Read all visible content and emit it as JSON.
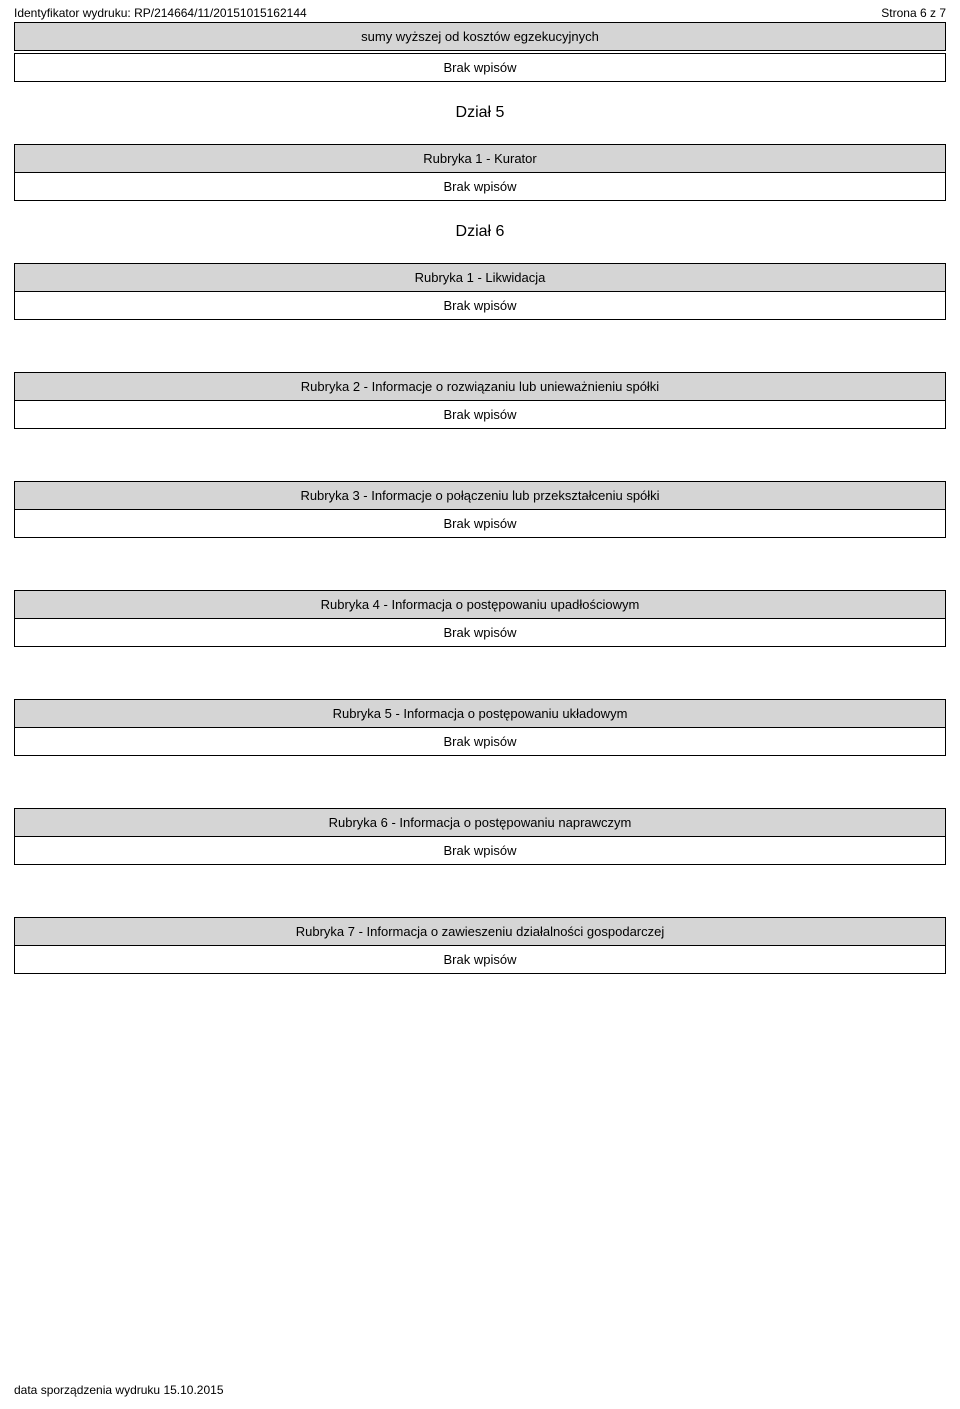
{
  "header": {
    "identifier_label": "Identyfikator wydruku:",
    "identifier_value": "RP/214664/11/20151015162144",
    "page_label": "Strona 6 z 7"
  },
  "top_section": {
    "title": "sumy wyższej od kosztów egzekucyjnych",
    "body": "Brak wpisów"
  },
  "dzial5": {
    "heading": "Dział 5",
    "rubryka1": {
      "title": "Rubryka 1 - Kurator",
      "body": "Brak wpisów"
    }
  },
  "dzial6": {
    "heading": "Dział 6",
    "rubryka1": {
      "title": "Rubryka 1 - Likwidacja",
      "body": "Brak wpisów"
    },
    "rubryka2": {
      "title": "Rubryka 2 - Informacje o rozwiązaniu lub unieważnieniu spółki",
      "body": "Brak wpisów"
    },
    "rubryka3": {
      "title": "Rubryka 3 - Informacje o połączeniu lub przekształceniu spółki",
      "body": "Brak wpisów"
    },
    "rubryka4": {
      "title": "Rubryka 4 - Informacja o postępowaniu upadłościowym",
      "body": "Brak wpisów"
    },
    "rubryka5": {
      "title": "Rubryka 5 - Informacja o postępowaniu układowym",
      "body": "Brak wpisów"
    },
    "rubryka6": {
      "title": "Rubryka 6 - Informacja o postępowaniu naprawczym",
      "body": "Brak wpisów"
    },
    "rubryka7": {
      "title": "Rubryka 7 - Informacja o zawieszeniu działalności gospodarczej",
      "body": "Brak wpisów"
    }
  },
  "footer": {
    "date_label": "data sporządzenia wydruku",
    "date_value": "15.10.2015"
  }
}
